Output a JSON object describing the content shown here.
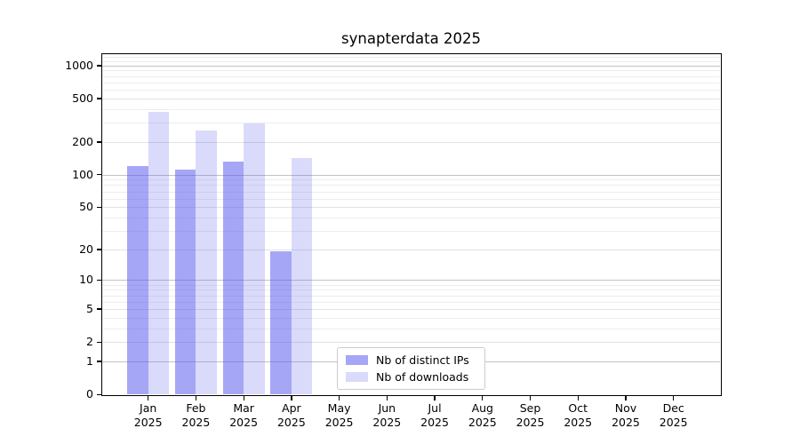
{
  "title": "synapterdata 2025",
  "legend": {
    "items": [
      {
        "label": "Nb of distinct IPs",
        "color": "rgba(85,85,238,0.52)"
      },
      {
        "label": "Nb of downloads",
        "color": "rgba(85,85,238,0.22)"
      }
    ]
  },
  "y_axis": {
    "tick_labels": [
      "1000",
      "500",
      "200",
      "100",
      "50",
      "20",
      "10",
      "5",
      "2",
      "1",
      "0"
    ]
  },
  "x_axis": {
    "months": [
      "Jan",
      "Feb",
      "Mar",
      "Apr",
      "May",
      "Jun",
      "Jul",
      "Aug",
      "Sep",
      "Oct",
      "Nov",
      "Dec"
    ],
    "year": "2025"
  },
  "chart_data": {
    "type": "bar",
    "title": "synapterdata 2025",
    "categories": [
      "Jan 2025",
      "Feb 2025",
      "Mar 2025",
      "Apr 2025",
      "May 2025",
      "Jun 2025",
      "Jul 2025",
      "Aug 2025",
      "Sep 2025",
      "Oct 2025",
      "Nov 2025",
      "Dec 2025"
    ],
    "series": [
      {
        "name": "Nb of distinct IPs",
        "color": "rgba(85,85,238,0.52)",
        "values": [
          119,
          112,
          131,
          19,
          0,
          0,
          0,
          0,
          0,
          0,
          0,
          0
        ]
      },
      {
        "name": "Nb of downloads",
        "color": "rgba(85,85,238,0.22)",
        "values": [
          378,
          253,
          293,
          142,
          0,
          0,
          0,
          0,
          0,
          0,
          0,
          0
        ]
      }
    ],
    "yscale": "log10(value+1)",
    "y_ticks": [
      1000,
      500,
      200,
      100,
      50,
      20,
      10,
      5,
      2,
      1,
      0
    ],
    "y_minor_gridlines": [
      3,
      4,
      6,
      7,
      8,
      9,
      30,
      40,
      60,
      70,
      80,
      90,
      300,
      400,
      600,
      700,
      800,
      900,
      1100,
      1200
    ],
    "ylim": [
      0,
      1270
    ],
    "grid": "horizontal, major + minor",
    "legend_position": "lower center"
  }
}
